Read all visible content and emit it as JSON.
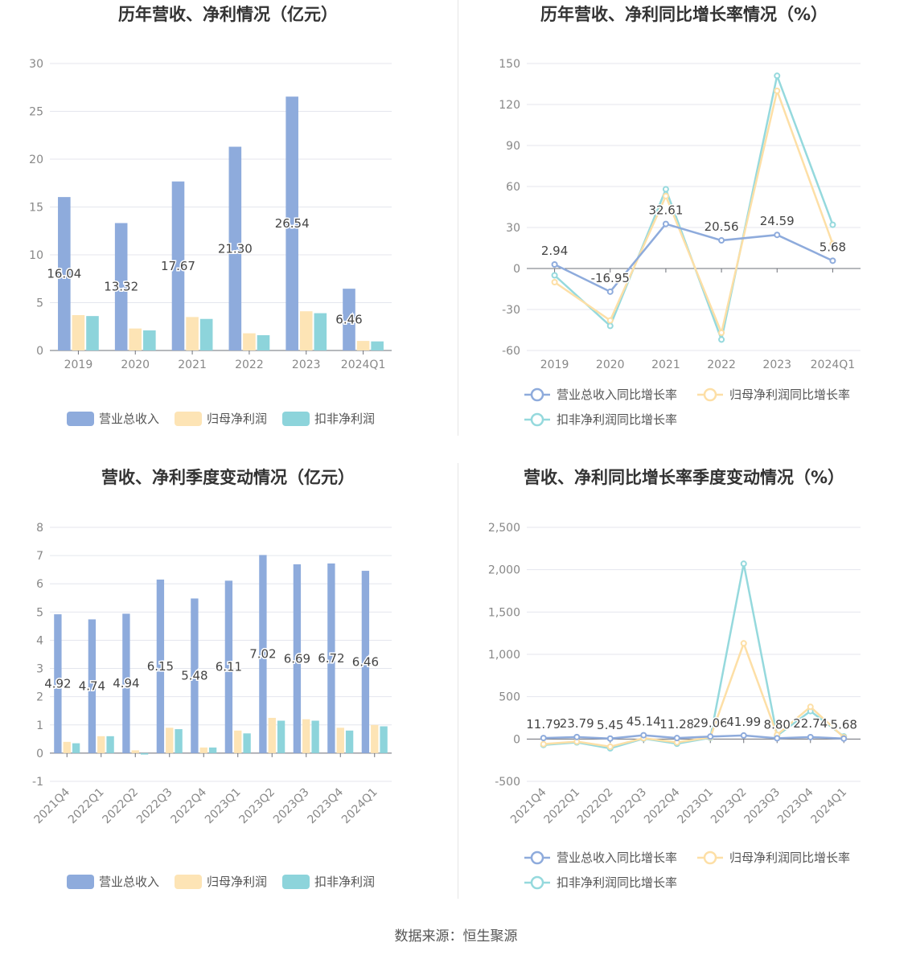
{
  "colors": {
    "revenue": "#8eabdc",
    "net_profit": "#fde4b5",
    "deducted_profit": "#8dd4db",
    "revenue_line": "#8eabdc",
    "net_profit_line": "#fddfa6",
    "deducted_line": "#95d9dd",
    "grid": "#e4e6ee",
    "axis_text": "#888888",
    "label_text": "#444444"
  },
  "source_text": "数据来源：恒生聚源",
  "charts": [
    {
      "title": "历年营收、净利情况（亿元）",
      "chart_data": {
        "type": "bar",
        "title": "历年营收、净利情况（亿元）",
        "categories": [
          "2019",
          "2020",
          "2021",
          "2022",
          "2023",
          "2024Q1"
        ],
        "ylim": [
          0,
          30
        ],
        "yticks": [
          "0",
          "5",
          "10",
          "15",
          "20",
          "25",
          "30"
        ],
        "series": [
          {
            "name": "营业总收入",
            "values": [
              16.04,
              13.32,
              17.67,
              21.3,
              26.54,
              6.46
            ],
            "labels": [
              "16.04",
              "13.32",
              "17.67",
              "21.30",
              "26.54",
              "6.46"
            ]
          },
          {
            "name": "归母净利润",
            "values": [
              3.7,
              2.3,
              3.5,
              1.8,
              4.1,
              1.0
            ]
          },
          {
            "name": "扣非净利润",
            "values": [
              3.6,
              2.1,
              3.3,
              1.6,
              3.9,
              0.95
            ]
          }
        ],
        "legend": [
          "营业总收入",
          "归母净利润",
          "扣非净利润"
        ],
        "grid": true,
        "legend_position": "bottom"
      }
    },
    {
      "title": "历年营收、净利同比增长率情况（%）",
      "chart_data": {
        "type": "line",
        "title": "历年营收、净利同比增长率情况（%）",
        "categories": [
          "2019",
          "2020",
          "2021",
          "2022",
          "2023",
          "2024Q1"
        ],
        "ylim": [
          -60,
          150
        ],
        "yticks": [
          "-60",
          "-30",
          "0",
          "30",
          "60",
          "90",
          "120",
          "150"
        ],
        "series": [
          {
            "name": "营业总收入同比增长率",
            "values": [
              2.94,
              -16.95,
              32.61,
              20.56,
              24.59,
              5.68
            ],
            "labels": [
              "2.94",
              "-16.95",
              "32.61",
              "20.56",
              "24.59",
              "5.68"
            ]
          },
          {
            "name": "归母净利润同比增长率",
            "values": [
              -10,
              -38,
              53,
              -47,
              130,
              18
            ]
          },
          {
            "name": "扣非净利润同比增长率",
            "values": [
              -5,
              -42,
              58,
              -52,
              141,
              32
            ]
          }
        ],
        "legend": [
          "营业总收入同比增长率",
          "归母净利润同比增长率",
          "扣非净利润同比增长率"
        ],
        "grid": true,
        "legend_position": "bottom"
      }
    },
    {
      "title": "营收、净利季度变动情况（亿元）",
      "chart_data": {
        "type": "bar",
        "title": "营收、净利季度变动情况（亿元）",
        "categories": [
          "2021Q4",
          "2022Q1",
          "2022Q2",
          "2022Q3",
          "2022Q4",
          "2023Q1",
          "2023Q2",
          "2023Q3",
          "2023Q4",
          "2024Q1"
        ],
        "ylim": [
          -1,
          8
        ],
        "yticks": [
          "-1",
          "0",
          "1",
          "2",
          "3",
          "4",
          "5",
          "6",
          "7",
          "8"
        ],
        "series": [
          {
            "name": "营业总收入",
            "values": [
              4.92,
              4.74,
              4.94,
              6.15,
              5.48,
              6.11,
              7.02,
              6.69,
              6.72,
              6.46
            ],
            "labels": [
              "4.92",
              "4.74",
              "4.94",
              "6.15",
              "5.48",
              "6.11",
              "7.02",
              "6.69",
              "6.72",
              "6.46"
            ]
          },
          {
            "name": "归母净利润",
            "values": [
              0.4,
              0.6,
              0.1,
              0.9,
              0.2,
              0.8,
              1.25,
              1.2,
              0.9,
              1.0
            ]
          },
          {
            "name": "扣非净利润",
            "values": [
              0.35,
              0.6,
              -0.05,
              0.85,
              0.2,
              0.7,
              1.15,
              1.15,
              0.8,
              0.95
            ]
          }
        ],
        "legend": [
          "营业总收入",
          "归母净利润",
          "扣非净利润"
        ],
        "grid": true,
        "legend_position": "bottom"
      }
    },
    {
      "title": "营收、净利同比增长率季度变动情况（%）",
      "chart_data": {
        "type": "line",
        "title": "营收、净利同比增长率季度变动情况（%）",
        "categories": [
          "2021Q4",
          "2022Q1",
          "2022Q2",
          "2022Q3",
          "2022Q4",
          "2023Q1",
          "2023Q2",
          "2023Q3",
          "2023Q4",
          "2024Q1"
        ],
        "ylim": [
          -500,
          2500
        ],
        "yticks": [
          "-500",
          "0",
          "500",
          "1,000",
          "1,500",
          "2,000",
          "2,500"
        ],
        "series": [
          {
            "name": "营业总收入同比增长率",
            "values": [
              11.79,
              23.79,
              5.45,
              45.14,
              11.28,
              29.06,
              41.99,
              8.8,
              22.74,
              5.68
            ],
            "labels": [
              "11.79",
              "23.79",
              "5.45",
              "45.14",
              "11.28",
              "29.06",
              "41.99",
              "8.80",
              "22.74",
              "5.68"
            ]
          },
          {
            "name": "归母净利润同比增长率",
            "values": [
              -60,
              -30,
              -90,
              10,
              -40,
              20,
              1130,
              50,
              380,
              20
            ]
          },
          {
            "name": "扣非净利润同比增长率",
            "values": [
              -70,
              -40,
              -110,
              5,
              -55,
              15,
              2070,
              40,
              330,
              30
            ]
          }
        ],
        "legend": [
          "营业总收入同比增长率",
          "归母净利润同比增长率",
          "扣非净利润同比增长率"
        ],
        "grid": true,
        "legend_position": "bottom"
      }
    }
  ]
}
